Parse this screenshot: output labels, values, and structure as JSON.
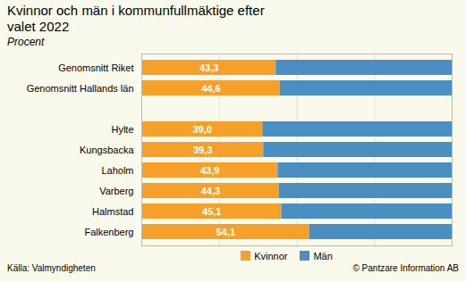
{
  "chart_data": {
    "type": "bar",
    "orientation": "horizontal",
    "stacked": true,
    "title": "Kvinnor och män i kommunfullmäktige efter\nvalet 2022",
    "subtitle": "Procent",
    "categories": [
      "Genomsnitt Riket",
      "Genomsnitt Hallands län",
      null,
      "Hylte",
      "Kungsbacka",
      "Laholm",
      "Varberg",
      "Halmstad",
      "Falkenberg"
    ],
    "series": [
      {
        "name": "Kvinnor",
        "color": "#f5a02a",
        "values": [
          43.3,
          44.6,
          null,
          39.0,
          39.3,
          43.9,
          44.3,
          45.1,
          54.1
        ],
        "data_labels": true,
        "value_labels": [
          "43,3",
          "44,6",
          null,
          "39,0",
          "39,3",
          "43,9",
          "44,3",
          "45,1",
          "54,1"
        ]
      },
      {
        "name": "Män",
        "color": "#4a8fc0",
        "values": [
          56.7,
          55.4,
          null,
          61.0,
          60.7,
          56.1,
          55.7,
          54.9,
          45.9
        ]
      }
    ],
    "xlim": [
      0,
      100
    ],
    "xticks": [
      0,
      25,
      50,
      75,
      100
    ],
    "grid": true,
    "tick_labels": "y",
    "legend": "bottom",
    "annotations": [
      "Källa: Valmyndigheten",
      "© Pantzare Information AB"
    ]
  }
}
